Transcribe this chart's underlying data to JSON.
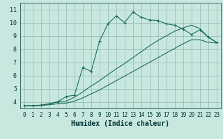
{
  "title": "",
  "xlabel": "Humidex (Indice chaleur)",
  "ylabel": "",
  "xlim": [
    -0.5,
    23.5
  ],
  "ylim": [
    3.5,
    11.5
  ],
  "xticks": [
    0,
    1,
    2,
    3,
    4,
    5,
    6,
    7,
    8,
    9,
    10,
    11,
    12,
    13,
    14,
    15,
    16,
    17,
    18,
    19,
    20,
    21,
    22,
    23
  ],
  "yticks": [
    4,
    5,
    6,
    7,
    8,
    9,
    10,
    11
  ],
  "bg_color": "#c8e8df",
  "grid_color": "#9bbfb8",
  "line_color": "#1a6b5a",
  "main_y": [
    3.7,
    3.7,
    3.75,
    3.85,
    4.0,
    4.4,
    4.5,
    6.6,
    6.3,
    8.6,
    9.9,
    10.5,
    10.0,
    10.8,
    10.4,
    10.2,
    10.15,
    9.9,
    9.8,
    9.5,
    9.1,
    9.45,
    8.9,
    8.5
  ],
  "line2_y": [
    3.7,
    3.7,
    3.75,
    3.85,
    4.0,
    4.05,
    4.35,
    4.75,
    5.2,
    5.6,
    6.05,
    6.5,
    6.9,
    7.35,
    7.8,
    8.25,
    8.65,
    9.0,
    9.35,
    9.6,
    9.8,
    9.55,
    8.9,
    8.5
  ],
  "line3_y": [
    3.7,
    3.7,
    3.72,
    3.78,
    3.85,
    3.9,
    4.05,
    4.3,
    4.6,
    4.9,
    5.25,
    5.6,
    5.95,
    6.3,
    6.65,
    7.0,
    7.35,
    7.7,
    8.05,
    8.4,
    8.7,
    8.7,
    8.5,
    8.45
  ]
}
